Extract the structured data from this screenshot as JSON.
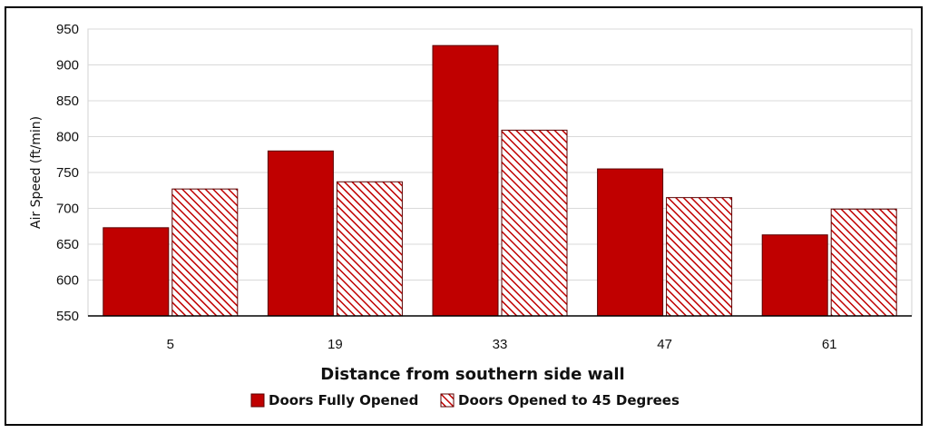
{
  "chart_data": {
    "type": "bar",
    "title": "",
    "xlabel": "Distance from southern side wall",
    "ylabel": "Air Speed (ft/min)",
    "categories": [
      "5",
      "19",
      "33",
      "47",
      "61"
    ],
    "ylim": [
      550,
      950
    ],
    "yticks": [
      550,
      600,
      650,
      700,
      750,
      800,
      850,
      900,
      950
    ],
    "grid": true,
    "legend_position": "bottom",
    "series": [
      {
        "name": "Doors Fully Opened",
        "values": [
          673,
          780,
          927,
          755,
          663
        ],
        "color": "#c00000",
        "pattern": "solid"
      },
      {
        "name": "Doors Opened to 45 Degrees",
        "values": [
          727,
          737,
          809,
          715,
          699
        ],
        "color": "#c00000",
        "pattern": "hatched"
      }
    ]
  }
}
